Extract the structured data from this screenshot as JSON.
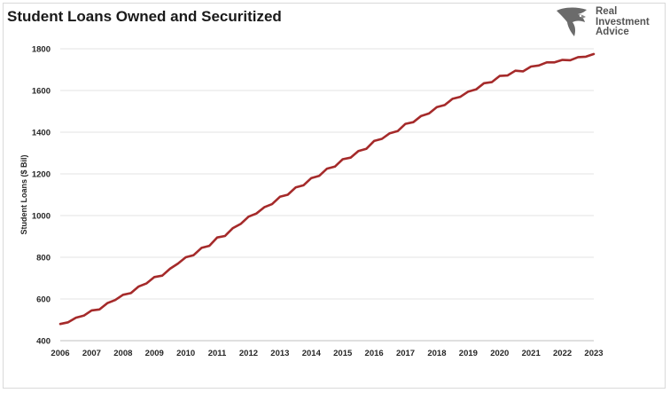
{
  "chart_data": {
    "type": "line",
    "title": "Student Loans Owned and Securitized",
    "xlabel": "",
    "ylabel": "Student Loans ($ Bil)",
    "xlim": [
      2006,
      2023
    ],
    "ylim": [
      400,
      1800
    ],
    "x_ticks": [
      "2006",
      "2007",
      "2008",
      "2009",
      "2010",
      "2011",
      "2012",
      "2013",
      "2014",
      "2015",
      "2016",
      "2017",
      "2018",
      "2019",
      "2020",
      "2021",
      "2022",
      "2023"
    ],
    "y_ticks": [
      400,
      600,
      800,
      1000,
      1200,
      1400,
      1600,
      1800
    ],
    "grid": "horizontal",
    "line_color": "#A52A2A",
    "series": [
      {
        "x": [
          2006.0,
          2006.25,
          2006.5,
          2006.75,
          2007.0,
          2007.25,
          2007.5,
          2007.75,
          2008.0,
          2008.25,
          2008.5,
          2008.75,
          2009.0,
          2009.25,
          2009.5,
          2009.75,
          2010.0,
          2010.25,
          2010.5,
          2010.75,
          2011.0,
          2011.25,
          2011.5,
          2011.75,
          2012.0,
          2012.25,
          2012.5,
          2012.75,
          2013.0,
          2013.25,
          2013.5,
          2013.75,
          2014.0,
          2014.25,
          2014.5,
          2014.75,
          2015.0,
          2015.25,
          2015.5,
          2015.75,
          2016.0,
          2016.25,
          2016.5,
          2016.75,
          2017.0,
          2017.25,
          2017.5,
          2017.75,
          2018.0,
          2018.25,
          2018.5,
          2018.75,
          2019.0,
          2019.25,
          2019.5,
          2019.75,
          2020.0,
          2020.25,
          2020.5,
          2020.75,
          2021.0,
          2021.25,
          2021.5,
          2021.75,
          2022.0,
          2022.25,
          2022.5,
          2022.75,
          2023.0
        ],
        "values": [
          480,
          488,
          510,
          520,
          545,
          550,
          580,
          595,
          620,
          628,
          660,
          675,
          705,
          712,
          745,
          770,
          800,
          810,
          845,
          855,
          895,
          902,
          940,
          960,
          995,
          1010,
          1040,
          1055,
          1090,
          1100,
          1135,
          1145,
          1180,
          1190,
          1225,
          1235,
          1270,
          1278,
          1310,
          1320,
          1358,
          1368,
          1395,
          1405,
          1440,
          1448,
          1478,
          1490,
          1520,
          1530,
          1560,
          1570,
          1595,
          1605,
          1635,
          1640,
          1670,
          1672,
          1695,
          1692,
          1715,
          1720,
          1735,
          1735,
          1747,
          1745,
          1760,
          1762,
          1775
        ]
      }
    ]
  },
  "logo": {
    "line1": "Real",
    "line2": "Investment",
    "line3": "Advice"
  }
}
